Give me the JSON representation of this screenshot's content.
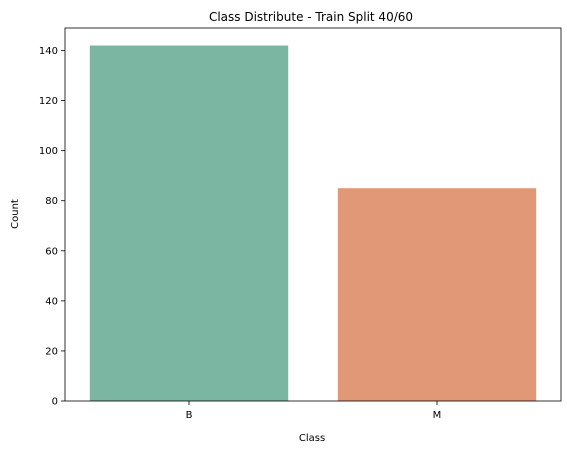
{
  "chart_data": {
    "type": "bar",
    "title": "Class Distribute - Train Split 40/60",
    "xlabel": "Class",
    "ylabel": "Count",
    "categories": [
      "B",
      "M"
    ],
    "values": [
      142,
      85
    ],
    "ylim": [
      0,
      149
    ],
    "yticks": [
      0,
      20,
      40,
      60,
      80,
      100,
      120,
      140
    ],
    "colors": [
      "#7bb6a2",
      "#e19877"
    ],
    "grid": false,
    "legend": "none"
  }
}
